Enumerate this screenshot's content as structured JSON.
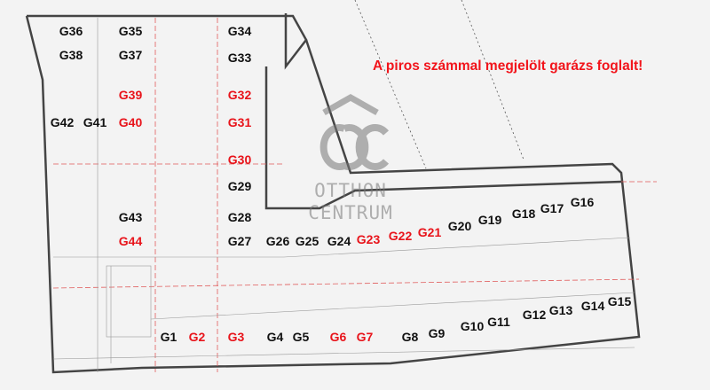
{
  "notice": "A piros számmal megjelölt garázs foglalt!",
  "colors": {
    "occupied": "#e8141b",
    "free": "#111111",
    "notice": "#f2141b",
    "walls": "#444444",
    "gridlines": "#e05a5a"
  },
  "watermark": {
    "line1": "OTTHON",
    "line2": "CENTRUM",
    "icon": "house-oc-logo"
  },
  "garages": [
    {
      "label": "G36",
      "occupied": false
    },
    {
      "label": "G35",
      "occupied": false
    },
    {
      "label": "G34",
      "occupied": false
    },
    {
      "label": "G38",
      "occupied": false
    },
    {
      "label": "G37",
      "occupied": false
    },
    {
      "label": "G33",
      "occupied": false
    },
    {
      "label": "G39",
      "occupied": true
    },
    {
      "label": "G32",
      "occupied": true
    },
    {
      "label": "G42",
      "occupied": false
    },
    {
      "label": "G41",
      "occupied": false
    },
    {
      "label": "G40",
      "occupied": true
    },
    {
      "label": "G31",
      "occupied": true
    },
    {
      "label": "G30",
      "occupied": true
    },
    {
      "label": "G29",
      "occupied": false
    },
    {
      "label": "G43",
      "occupied": false
    },
    {
      "label": "G28",
      "occupied": false
    },
    {
      "label": "G44",
      "occupied": true
    },
    {
      "label": "G27",
      "occupied": false
    },
    {
      "label": "G26",
      "occupied": false
    },
    {
      "label": "G25",
      "occupied": false
    },
    {
      "label": "G24",
      "occupied": false
    },
    {
      "label": "G23",
      "occupied": true
    },
    {
      "label": "G22",
      "occupied": true
    },
    {
      "label": "G21",
      "occupied": true
    },
    {
      "label": "G20",
      "occupied": false
    },
    {
      "label": "G19",
      "occupied": false
    },
    {
      "label": "G18",
      "occupied": false
    },
    {
      "label": "G17",
      "occupied": false
    },
    {
      "label": "G16",
      "occupied": false
    },
    {
      "label": "G15",
      "occupied": false
    },
    {
      "label": "G14",
      "occupied": false
    },
    {
      "label": "G13",
      "occupied": false
    },
    {
      "label": "G12",
      "occupied": false
    },
    {
      "label": "G11",
      "occupied": false
    },
    {
      "label": "G10",
      "occupied": false
    },
    {
      "label": "G9",
      "occupied": false
    },
    {
      "label": "G8",
      "occupied": false
    },
    {
      "label": "G7",
      "occupied": true
    },
    {
      "label": "G6",
      "occupied": true
    },
    {
      "label": "G5",
      "occupied": false
    },
    {
      "label": "G4",
      "occupied": false
    },
    {
      "label": "G3",
      "occupied": true
    },
    {
      "label": "G2",
      "occupied": true
    },
    {
      "label": "G1",
      "occupied": false
    }
  ]
}
